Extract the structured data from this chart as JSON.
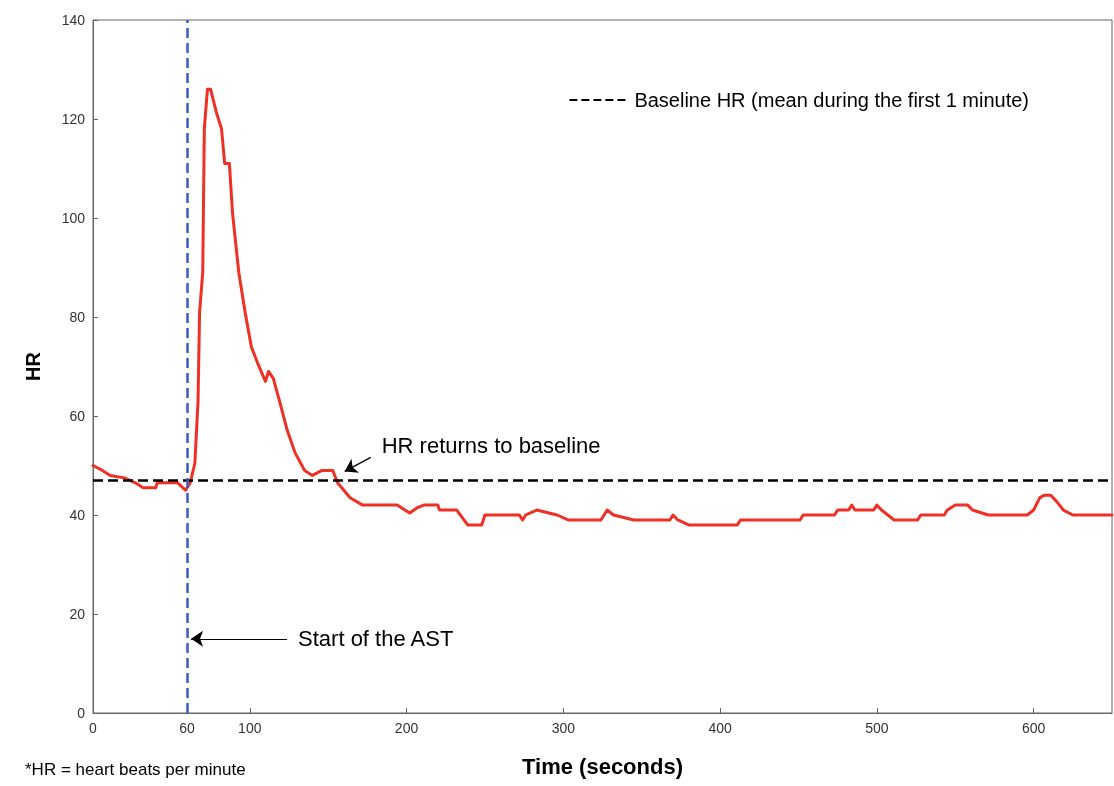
{
  "chart_data": {
    "type": "line",
    "xlabel": "Time (seconds)",
    "ylabel": "HR",
    "xlim": [
      0,
      650
    ],
    "xticks": [
      0,
      60,
      100,
      200,
      300,
      400,
      500,
      600
    ],
    "ylim": [
      0,
      140
    ],
    "yticks": [
      0,
      20,
      40,
      60,
      80,
      100,
      120,
      140
    ],
    "series": [
      {
        "color": "#ee3124",
        "x": [
          0,
          6,
          11,
          20,
          27,
          32,
          40,
          41,
          54,
          59,
          62,
          65,
          67,
          68,
          70,
          70.5,
          71,
          73,
          75,
          79,
          82,
          84,
          87,
          89,
          93,
          97,
          101,
          105,
          110,
          112,
          115,
          119,
          124,
          129,
          135,
          140,
          146,
          153,
          156,
          164,
          172,
          176,
          185,
          194,
          202,
          207,
          211,
          220,
          221,
          232,
          239,
          248,
          250,
          272,
          274,
          276,
          283,
          296,
          303,
          324,
          328,
          332,
          345,
          368,
          370,
          373,
          380,
          406,
          411,
          413,
          451,
          453,
          473,
          475,
          482,
          484,
          486,
          498,
          500,
          503,
          507,
          511,
          526,
          528,
          543,
          545,
          550,
          558,
          561,
          571,
          596,
          600,
          604,
          607,
          611,
          615,
          619,
          625,
          650
        ],
        "values": [
          50,
          49,
          48,
          47.5,
          46.5,
          45.5,
          45.5,
          46.5,
          46.5,
          45,
          46.5,
          50.5,
          63,
          81,
          89,
          103,
          118,
          126,
          126,
          121,
          118,
          111,
          111,
          101,
          89,
          81,
          74,
          70.7,
          67,
          69,
          67.6,
          63,
          57,
          52.5,
          49,
          48,
          49,
          49,
          46.5,
          43.5,
          42,
          42,
          42,
          42,
          40.4,
          41.5,
          42,
          42,
          41,
          41,
          38,
          38,
          40,
          40,
          39,
          40,
          41,
          40,
          39,
          39,
          41,
          40,
          39,
          39,
          40,
          39,
          38,
          38,
          38,
          39,
          39,
          40,
          40,
          41,
          41,
          42,
          41,
          41,
          42,
          41,
          40,
          39,
          39,
          40,
          40,
          41,
          42,
          42,
          41,
          40,
          40,
          41,
          43.5,
          44,
          44,
          42.6,
          41,
          40,
          40
        ]
      }
    ],
    "ref_lines": [
      {
        "axis": "y",
        "value": 47,
        "label": "Baseline HR (mean during the first 1 minute)",
        "color": "#000000",
        "line_style": "dashed"
      },
      {
        "axis": "x",
        "value": 60,
        "color": "#3a5bc7",
        "line_style": "dashed"
      }
    ],
    "annotations": [
      {
        "text": "Start of the AST",
        "x": 60,
        "y": 15
      },
      {
        "text": "HR returns to baseline",
        "x": 158,
        "y": 48
      },
      "*HR = heart beats per minute"
    ],
    "legend": "top right",
    "grid": false,
    "marker": "none",
    "line_style": "solid"
  }
}
